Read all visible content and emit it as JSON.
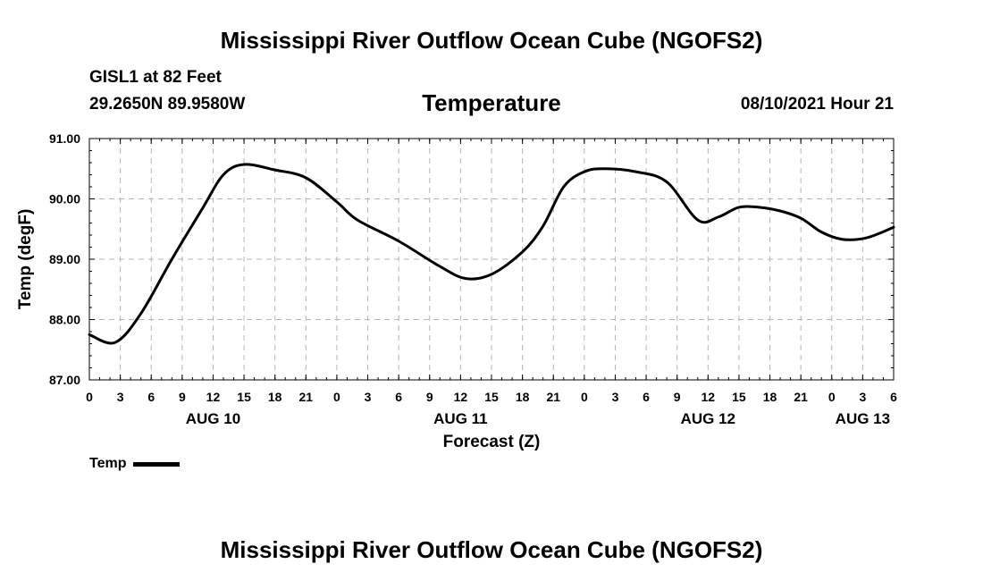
{
  "header": {
    "title": "Mississippi River Outflow Ocean Cube (NGOFS2)",
    "station": "GISL1 at 82 Feet",
    "coords": "29.2650N  89.9580W",
    "variable": "Temperature",
    "datetime": "08/10/2021 Hour 21"
  },
  "footer": {
    "title": "Mississippi River Outflow Ocean Cube (NGOFS2)"
  },
  "legend": {
    "label": "Temp"
  },
  "chart_data": {
    "type": "line",
    "title": "Temperature",
    "xlabel": "Forecast (Z)",
    "ylabel": "Temp (degF)",
    "xlim": [
      0,
      78
    ],
    "ylim": [
      87.0,
      91.0
    ],
    "yticks": [
      "87.00",
      "88.00",
      "89.00",
      "90.00",
      "91.00"
    ],
    "xticks": [
      "0",
      "3",
      "6",
      "9",
      "12",
      "15",
      "18",
      "21",
      "0",
      "3",
      "6",
      "9",
      "12",
      "15",
      "18",
      "21",
      "0",
      "3",
      "6",
      "9",
      "12",
      "15",
      "18",
      "21",
      "0",
      "3",
      "6"
    ],
    "date_labels": [
      {
        "label": "AUG 10",
        "at": 12
      },
      {
        "label": "AUG 11",
        "at": 36
      },
      {
        "label": "AUG 12",
        "at": 60
      },
      {
        "label": "AUG 13",
        "at": 75
      }
    ],
    "grid": true,
    "series": [
      {
        "name": "Temp",
        "x": [
          0,
          2.5,
          5,
          8,
          11,
          13,
          15,
          18,
          21,
          24,
          26,
          30,
          34,
          36.5,
          39,
          42,
          44,
          46,
          48,
          50,
          53,
          56,
          59,
          61,
          63,
          65,
          67,
          69,
          71,
          73,
          75,
          76.5,
          78
        ],
        "values": [
          87.75,
          87.62,
          88.1,
          89.0,
          89.85,
          90.4,
          90.57,
          90.48,
          90.35,
          89.95,
          89.65,
          89.3,
          88.88,
          88.68,
          88.75,
          89.12,
          89.55,
          90.2,
          90.45,
          90.5,
          90.45,
          90.28,
          89.65,
          89.7,
          89.86,
          89.86,
          89.8,
          89.68,
          89.45,
          89.33,
          89.34,
          89.42,
          89.53
        ]
      }
    ]
  }
}
